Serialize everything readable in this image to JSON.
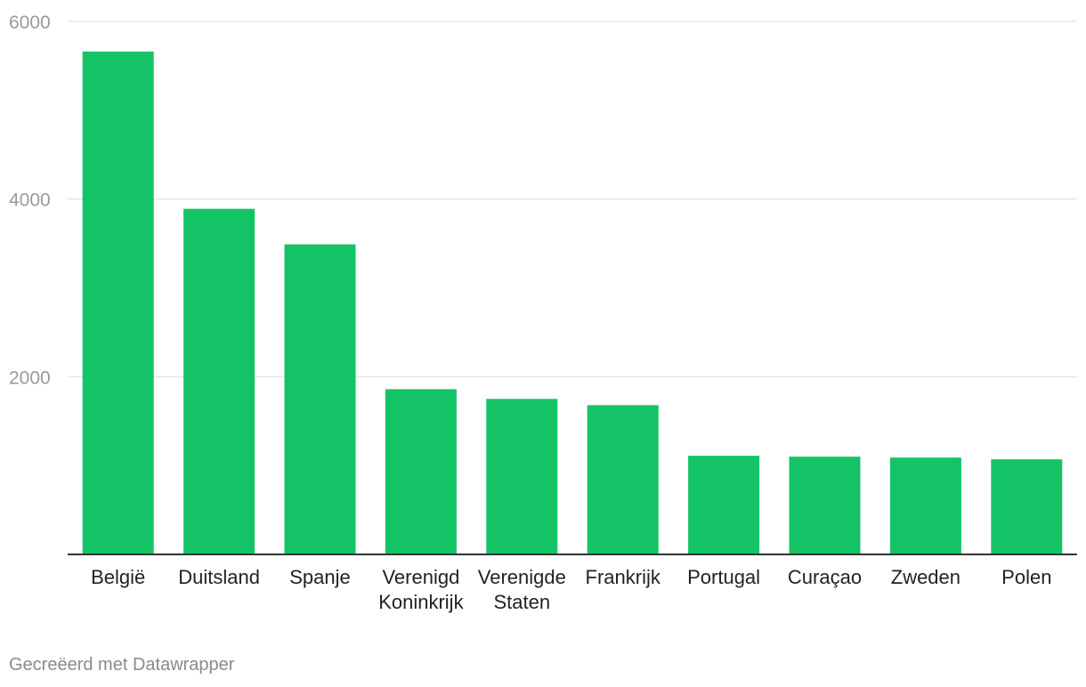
{
  "chart_data": {
    "type": "bar",
    "title": "",
    "xlabel": "",
    "ylabel": "",
    "ylim": [
      0,
      6000
    ],
    "yticks": [
      2000,
      4000,
      6000
    ],
    "categories": [
      [
        "België"
      ],
      [
        "Duitsland"
      ],
      [
        "Spanje"
      ],
      [
        "Verenigd",
        "Koninkrijk"
      ],
      [
        "Verenigde",
        "Staten"
      ],
      [
        "Frankrijk"
      ],
      [
        "Portugal"
      ],
      [
        "Curaçao"
      ],
      [
        "Zweden"
      ],
      [
        "Polen"
      ]
    ],
    "values": [
      5660,
      3890,
      3490,
      1860,
      1750,
      1680,
      1110,
      1100,
      1090,
      1070
    ],
    "bar_color": "#15c367",
    "grid": true
  },
  "footer": {
    "credit": "Gecreëerd met Datawrapper"
  }
}
